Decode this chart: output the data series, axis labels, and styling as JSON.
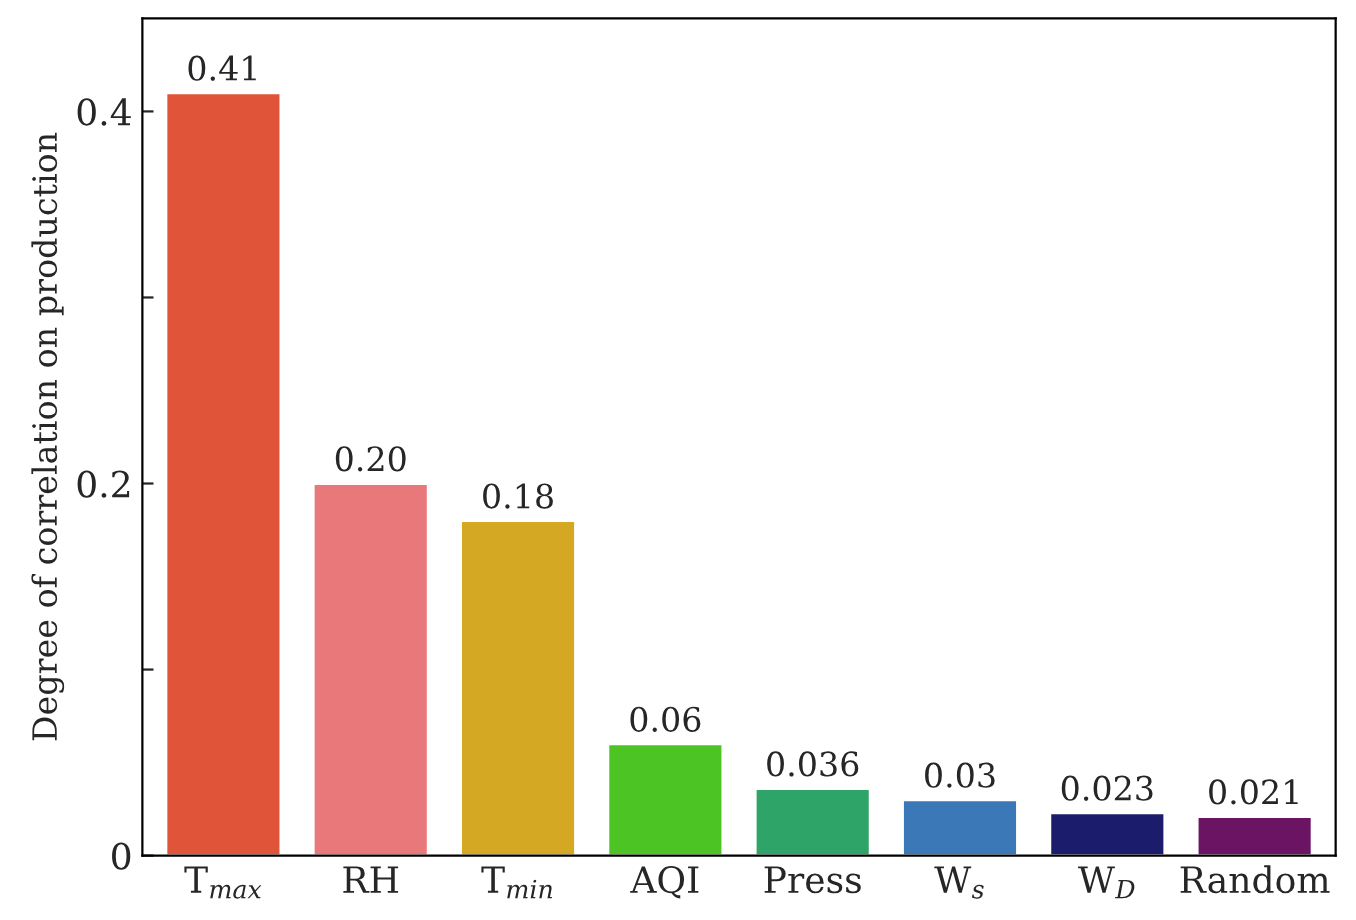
{
  "chart_data": {
    "type": "bar",
    "ylabel": "Degree of correlation on production",
    "categories": [
      "T$_{max}$",
      "RH",
      "T$_{min}$",
      "AQI",
      "Press",
      "W$_{s}$",
      "W$_{D}$",
      "Random"
    ],
    "values": [
      0.41,
      0.2,
      0.18,
      0.06,
      0.036,
      0.03,
      0.023,
      0.021
    ],
    "value_labels": [
      "0.41",
      "0.20",
      "0.18",
      "0.06",
      "0.036",
      "0.03",
      "0.023",
      "0.021"
    ],
    "colors": [
      "#e0553a",
      "#e8787a",
      "#d4a822",
      "#4cc424",
      "#2ea468",
      "#3a78b8",
      "#1c1c6c",
      "#6c1464"
    ],
    "ylim": [
      0,
      0.45
    ],
    "yticks": [
      0,
      {
        "value": 0.1,
        "label": null
      },
      0.2,
      {
        "value": 0.3,
        "label": null
      },
      0.4
    ],
    "grid": false,
    "legend": false
  }
}
